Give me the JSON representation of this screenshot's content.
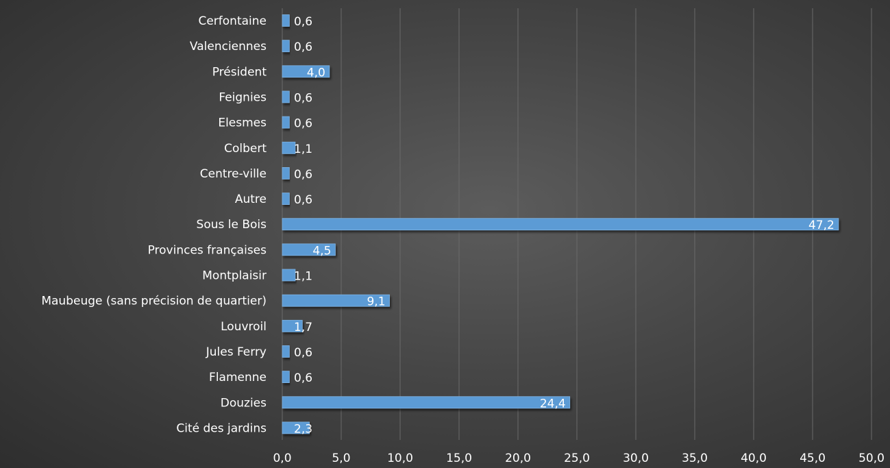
{
  "chart_data": {
    "type": "bar",
    "orientation": "horizontal",
    "categories": [
      "Cerfontaine",
      "Valenciennes",
      "Président",
      "Feignies",
      "Elesmes",
      "Colbert",
      "Centre-ville",
      "Autre",
      "Sous le Bois",
      "Provinces françaises",
      "Montplaisir",
      "Maubeuge (sans précision de quartier)",
      "Louvroil",
      "Jules Ferry",
      "Flamenne",
      "Douzies",
      "Cité des jardins"
    ],
    "values": [
      0.6,
      0.6,
      4.0,
      0.6,
      0.6,
      1.1,
      0.6,
      0.6,
      47.2,
      4.5,
      1.1,
      9.1,
      1.7,
      0.6,
      0.6,
      24.4,
      2.3
    ],
    "value_labels": [
      "0,6",
      "0,6",
      "4,0",
      "0,6",
      "0,6",
      "1,1",
      "0,6",
      "0,6",
      "47,2",
      "4,5",
      "1,1",
      "9,1",
      "1,7",
      "0,6",
      "0,6",
      "24,4",
      "2,3"
    ],
    "x_ticks": [
      "0,0",
      "5,0",
      "10,0",
      "15,0",
      "20,0",
      "25,0",
      "30,0",
      "35,0",
      "40,0",
      "45,0",
      "50,0"
    ],
    "xlim": [
      0,
      50
    ],
    "title": "",
    "xlabel": "",
    "ylabel": "",
    "grid": "vertical",
    "legend": "none",
    "colors": {
      "bar_fill": "#5b9bd5",
      "bar_edge": "#7fb3e3",
      "grid": "#6a6a6a",
      "text": "#ffffff"
    }
  }
}
